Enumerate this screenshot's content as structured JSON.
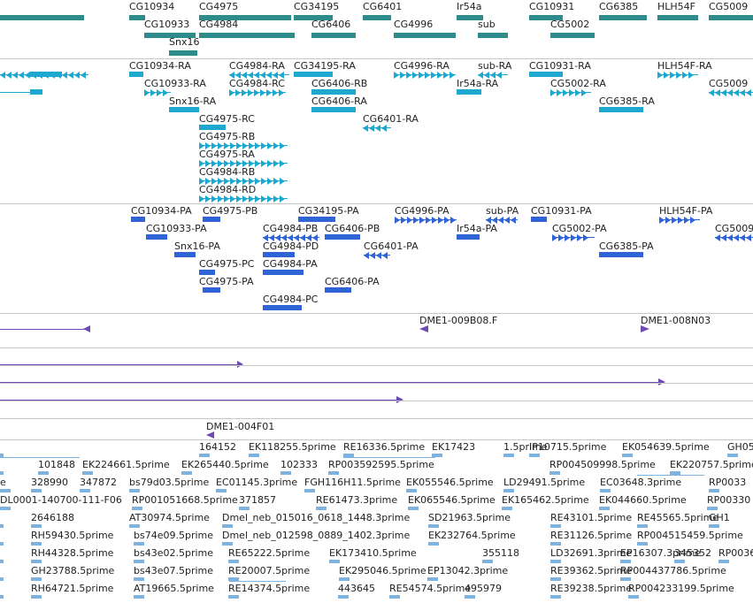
{
  "colors": {
    "gene": "#2e8b8b",
    "transcript": "#1fa8cf",
    "protein": "#2f64d6",
    "clone": "#6e4bb3",
    "est": "#7eb3e0",
    "separator": "#c8c8c8"
  },
  "tracks": {
    "genes": {
      "labels": [
        "CG10934",
        "CG4975",
        "CG34195",
        "CG6401",
        "Ir54a",
        "CG10931",
        "CG6385",
        "HLH54F",
        "CG5009",
        "CG10933",
        "CG4984",
        "CG6406",
        "CG4996",
        "sub",
        "CG5002",
        "Snx16"
      ]
    },
    "transcripts": {
      "labels": [
        "CG10934-RA",
        "CG4984-RA",
        "CG34195-RA",
        "CG4996-RA",
        "sub-RA",
        "CG10931-RA",
        "HLH54F-RA",
        "CG10933-RA",
        "CG4984-RC",
        "CG6406-RB",
        "Ir54a-RA",
        "CG5002-RA",
        "CG5009",
        "Snx16-RA",
        "CG6406-RA",
        "CG6385-RA",
        "CG4975-RC",
        "CG6401-RA",
        "CG4975-RB",
        "CG4975-RA",
        "CG4984-RB",
        "CG4984-RD"
      ]
    },
    "proteins": {
      "labels": [
        "CG10934-PA",
        "CG4975-PB",
        "CG34195-PA",
        "CG4996-PA",
        "sub-PA",
        "CG10931-PA",
        "HLH54F-PA",
        "CG10933-PA",
        "CG4984-PB",
        "CG6406-PB",
        "Ir54a-PA",
        "CG5002-PA",
        "CG5009",
        "Snx16-PA",
        "CG4984-PD",
        "CG6401-PA",
        "CG6385-PA",
        "CG4975-PC",
        "CG4984-PA",
        "CG4975-PA",
        "CG6406-PA",
        "CG4984-PC"
      ]
    },
    "clones": {
      "labels": [
        "DME1-009B08.F",
        "DME1-008N03",
        "DME1-004F01"
      ]
    },
    "ests": {
      "labels": [
        "164152",
        "EK118255.5prime",
        "RE16336.5prime",
        "EK17423",
        "1.5prime",
        "IP10715.5prime",
        "EK054639.5prime",
        "GH05",
        "101848",
        "EK224661.5prime",
        "EK265440.5prime",
        "102333",
        "RP003592595.5prime",
        "RP004509998.5prime",
        "EK220757.5prime",
        "e",
        "328990",
        "347872",
        "bs79d03.5prime",
        "EC01145.3prime",
        "FGH116H11.5prime",
        "EK055546.5prime",
        "LD29491.5prime",
        "EC03648.3prime",
        "RP0033",
        "DL0001-140700-111-F06",
        "RP001051668.5prime",
        "371857",
        "RE61473.3prime",
        "EK065546.5prime",
        "EK165462.5prime",
        "EK044660.5prime",
        "RP00330",
        "2646188",
        "AT30974.5prime",
        "Dmel_neb_015016_0618_1448.3prime",
        "SD21963.5prime",
        "RE43101.5prime",
        "RE45565.5prime",
        "GH1",
        "RH59430.5prime",
        "bs74e09.5prime",
        "Dmel_neb_012598_0889_1402.3prime",
        "EK232764.5prime",
        "RE31126.5prime",
        "RP004515459.5prime",
        "RH44328.5prime",
        "bs43e02.5prime",
        "RE65222.5prime",
        "EK173410.5prime",
        "355118",
        "LD32691.3prime",
        "EP16307.3prime",
        "345352",
        "RP0036",
        "GH23788.5prime",
        "bs43e07.5prime",
        "RE20007.5prime",
        "EK295046.5prime",
        "EP13042.3prime",
        "RE39362.5prime",
        "RP004437786.5prime",
        "RH64721.5prime",
        "AT19665.5prime",
        "RE14374.5prime",
        "443645",
        "RE54574.5prime",
        "495979",
        "RE39238.5prime",
        "RP004233199.5prime"
      ]
    }
  }
}
